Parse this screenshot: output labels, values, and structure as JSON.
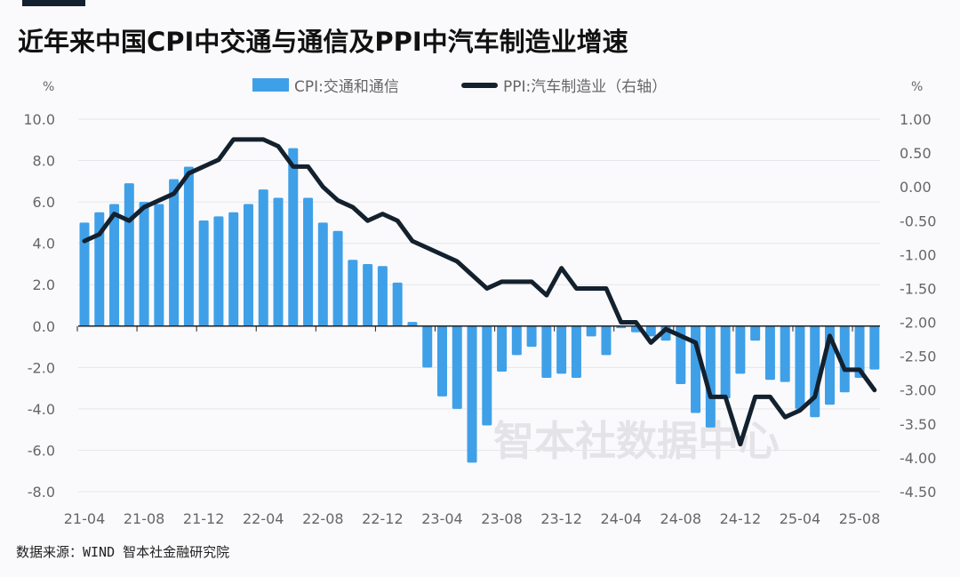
{
  "title": "近年来中国CPI中交通与通信及PPI中汽车制造业增速",
  "source": "数据来源：WIND 智本社金融研究院",
  "watermark": "智本社数据中心",
  "colors": {
    "bar": "#3fa0e8",
    "line": "#13212e",
    "grid": "#e6e6ea",
    "background": "#fafafc"
  },
  "chart_data": {
    "type": "bar+line",
    "title": "近年来中国CPI中交通与通信及PPI中汽车制造业增速",
    "left_unit": "%",
    "right_unit": "%",
    "legend_position": "top",
    "grid": true,
    "ylim_left": [
      -8,
      10
    ],
    "ylim_right": [
      -4.5,
      1.0
    ],
    "left_ticks": [
      "10.0",
      "8.0",
      "6.0",
      "4.0",
      "2.0",
      "0.0",
      "-2.0",
      "-4.0",
      "-6.0",
      "-8.0"
    ],
    "right_ticks": [
      "1.00",
      "0.50",
      "0.00",
      "-0.50",
      "-1.00",
      "-1.50",
      "-2.00",
      "-2.50",
      "-3.00",
      "-3.50",
      "-4.00",
      "-4.50"
    ],
    "x_ticks": [
      "21-04",
      "21-08",
      "21-12",
      "22-04",
      "22-08",
      "22-12",
      "23-04",
      "23-08",
      "23-12",
      "24-04",
      "24-08",
      "24-12",
      "25-04",
      "25-08"
    ],
    "x": [
      "21-04",
      "21-05",
      "21-06",
      "21-07",
      "21-08",
      "21-09",
      "21-10",
      "21-11",
      "21-12",
      "22-01",
      "22-02",
      "22-03",
      "22-04",
      "22-05",
      "22-06",
      "22-07",
      "22-08",
      "22-09",
      "22-10",
      "22-11",
      "22-12",
      "23-01",
      "23-02",
      "23-03",
      "23-04",
      "23-05",
      "23-06",
      "23-07",
      "23-08",
      "23-09",
      "23-10",
      "23-11",
      "23-12",
      "24-01",
      "24-02",
      "24-03",
      "24-04",
      "24-05",
      "24-06",
      "24-07",
      "24-08",
      "24-09",
      "24-10",
      "24-11",
      "24-12",
      "25-01",
      "25-02",
      "25-03",
      "25-04",
      "25-05",
      "25-06",
      "25-07",
      "25-08",
      "25-09"
    ],
    "series": [
      {
        "name": "CPI:交通和通信",
        "type": "bar",
        "axis": "left",
        "values": [
          5.0,
          5.5,
          5.9,
          6.9,
          6.0,
          5.9,
          7.1,
          7.7,
          5.1,
          5.3,
          5.5,
          5.9,
          6.6,
          6.2,
          8.6,
          6.2,
          5.0,
          4.6,
          3.2,
          3.0,
          2.9,
          2.1,
          0.2,
          -2.0,
          -3.4,
          -4.0,
          -6.6,
          -4.8,
          -2.2,
          -1.4,
          -1.0,
          -2.5,
          -2.3,
          -2.5,
          -0.5,
          -1.4,
          -0.1,
          -0.3,
          -0.5,
          -0.7,
          -2.8,
          -4.2,
          -4.9,
          -3.5,
          -2.3,
          -0.7,
          -2.6,
          -2.7,
          -4.0,
          -4.4,
          -3.8,
          -3.2,
          -2.5,
          -2.1
        ]
      },
      {
        "name": "PPI:汽车制造业（右轴）",
        "type": "line",
        "axis": "right",
        "values": [
          -0.8,
          -0.7,
          -0.4,
          -0.5,
          -0.3,
          -0.2,
          -0.1,
          0.2,
          0.3,
          0.4,
          0.7,
          0.7,
          0.7,
          0.6,
          0.3,
          0.3,
          0.0,
          -0.2,
          -0.3,
          -0.5,
          -0.4,
          -0.5,
          -0.8,
          -0.9,
          -1.0,
          -1.1,
          -1.3,
          -1.5,
          -1.4,
          -1.4,
          -1.4,
          -1.6,
          -1.2,
          -1.5,
          -1.5,
          -1.5,
          -2.0,
          -2.0,
          -2.3,
          -2.1,
          -2.2,
          -2.3,
          -3.1,
          -3.1,
          -3.8,
          -3.1,
          -3.1,
          -3.4,
          -3.3,
          -3.1,
          -2.2,
          -2.7,
          -2.7,
          -3.0
        ]
      }
    ]
  }
}
